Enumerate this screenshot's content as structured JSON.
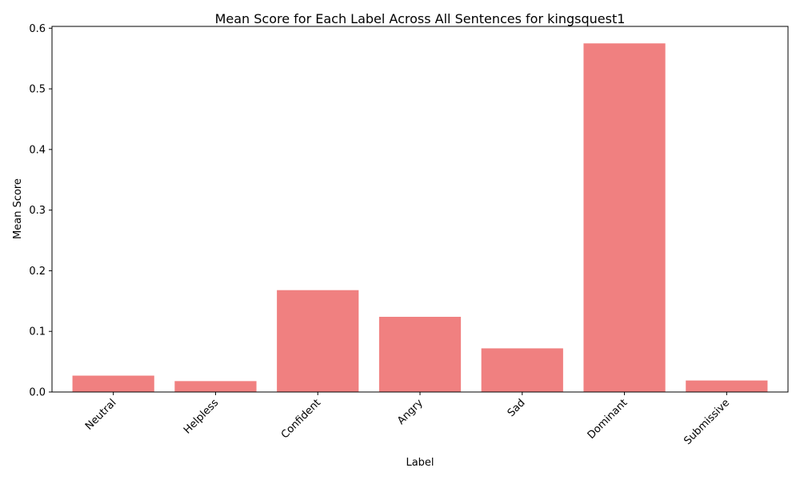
{
  "chart_data": {
    "type": "bar",
    "title": "Mean Score for Each Label Across All Sentences for kingsquest1",
    "xlabel": "Label",
    "ylabel": "Mean Score",
    "categories": [
      "Neutral",
      "Helpless",
      "Confident",
      "Angry",
      "Sad",
      "Dominant",
      "Submissive"
    ],
    "values": [
      0.027,
      0.018,
      0.168,
      0.124,
      0.072,
      0.575,
      0.019
    ],
    "ylim": [
      0,
      0.603
    ],
    "yticks": [
      "0.0",
      "0.1",
      "0.2",
      "0.3",
      "0.4",
      "0.5",
      "0.6"
    ],
    "bar_color": "#f08080",
    "grid": false,
    "legend": "none"
  }
}
